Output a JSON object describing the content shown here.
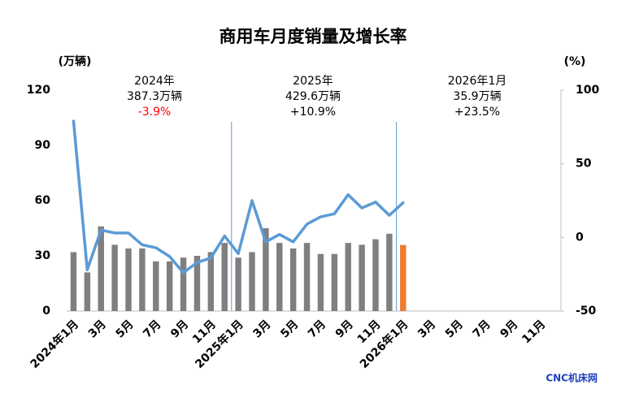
{
  "chart_data": {
    "type": "bar",
    "title": "商用车月度销量及增长率",
    "ylabel": "(万辆)",
    "y2label": "(%)",
    "categories": [
      "2024年1月",
      null,
      "3月",
      null,
      "5月",
      null,
      "7月",
      null,
      "9月",
      null,
      "11月",
      null,
      "2025年1月",
      null,
      "3月",
      null,
      "5月",
      null,
      "7月",
      null,
      "9月",
      null,
      "11月",
      null,
      "2026年1月",
      null,
      "3月",
      null,
      "5月",
      null,
      "7月",
      null,
      "9月",
      null,
      "11月",
      null
    ],
    "ylim": [
      0,
      120
    ],
    "yticks": [
      0,
      30,
      60,
      90,
      120
    ],
    "y2lim": [
      -50,
      100
    ],
    "y2ticks": [
      -50,
      0,
      50,
      100
    ],
    "series": [
      {
        "type": "bar",
        "color": "#7f7f7f",
        "highlight_color": "#ed7d31",
        "values": [
          32,
          21,
          46,
          36,
          34,
          34,
          27,
          27,
          29,
          30,
          32,
          37,
          29,
          32,
          45,
          37,
          34,
          37,
          31,
          31,
          37,
          36,
          39,
          42,
          35.9,
          null,
          null,
          null,
          null,
          null,
          null,
          null,
          null,
          null,
          null,
          null
        ]
      },
      {
        "type": "line",
        "axis": "y2",
        "color": "#5b9bd5",
        "values": [
          79,
          -22,
          5,
          3,
          3,
          -5,
          -7,
          -13,
          -24,
          -17,
          -14,
          1,
          -11,
          25,
          -3,
          2,
          -3,
          9,
          14,
          16,
          29,
          20,
          24,
          15,
          23.5,
          null,
          null,
          null,
          null,
          null,
          null,
          null,
          null,
          null,
          null,
          null
        ]
      }
    ],
    "annotations": [
      {
        "year": "2024年",
        "volume": "387.3万辆",
        "growth": "-3.9%",
        "growth_color": "#ff0000"
      },
      {
        "year": "2025年",
        "volume": "429.6万辆",
        "growth": "+10.9%",
        "growth_color": "#000000"
      },
      {
        "year": "2026年1月",
        "volume": "35.9万辆",
        "growth": "+23.5%",
        "growth_color": "#000000"
      }
    ],
    "source": "CNC机床网"
  }
}
